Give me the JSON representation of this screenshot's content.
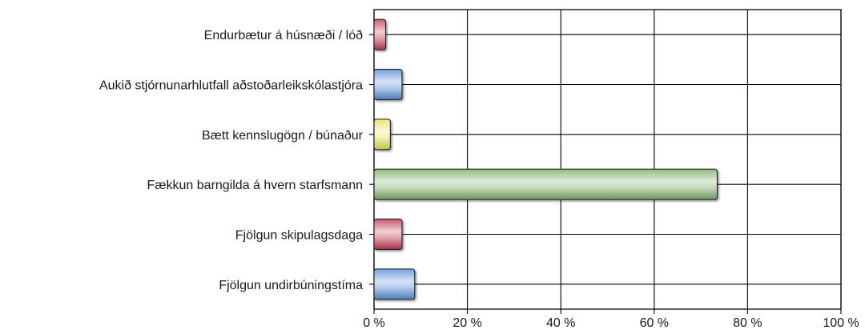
{
  "chart_data": {
    "type": "bar",
    "orientation": "horizontal",
    "categories": [
      "Endurbætur á húsnæði / lóð",
      "Aukið stjórnunarhlutfall aðstoðarleikskólastjóra",
      "Bætt kennslugögn / búnaður",
      "Fækkun barngilda á hvern starfsmann",
      "Fjölgun skipulagsdaga",
      "Fjölgun undirbúningstíma"
    ],
    "values": [
      2.5,
      6.0,
      3.5,
      73.5,
      6.0,
      8.7
    ],
    "bar_colors": [
      "#c43a52",
      "#5b8fd9",
      "#e3e35a",
      "#7fae6a",
      "#c43a52",
      "#5b8fd9"
    ],
    "xlim": [
      0,
      100
    ],
    "x_ticks": [
      0,
      20,
      40,
      60,
      80,
      100
    ],
    "x_tick_labels": [
      "0 %",
      "20 %",
      "40 %",
      "60 %",
      "80 %",
      "100 %"
    ],
    "grid": true,
    "title": "",
    "xlabel": "",
    "ylabel": ""
  }
}
